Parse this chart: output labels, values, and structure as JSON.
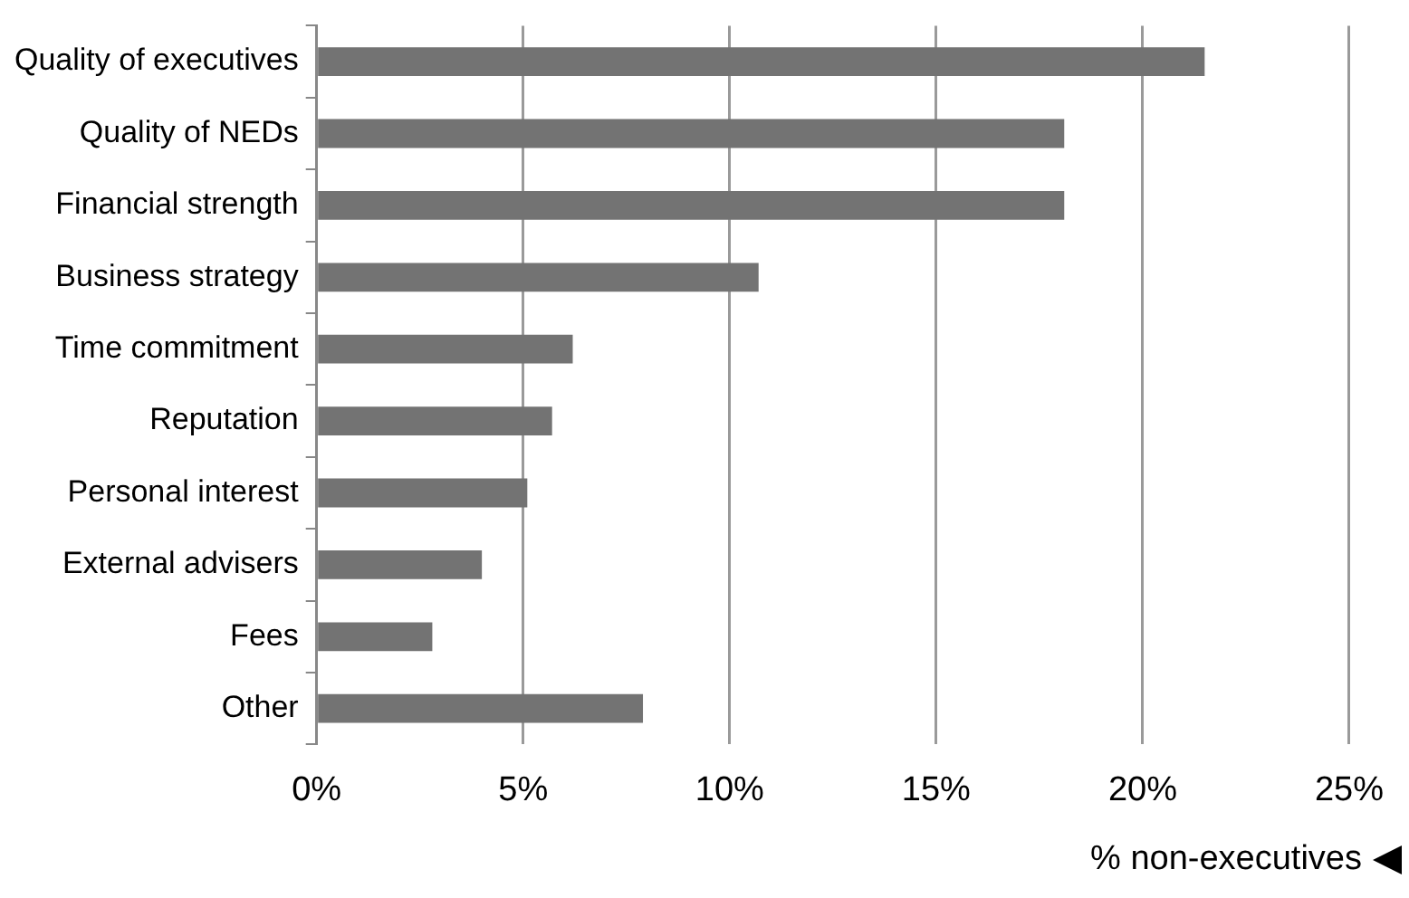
{
  "chart_data": {
    "type": "bar",
    "orientation": "horizontal",
    "xlabel": "% non-executives",
    "categories": [
      "Quality of executives",
      "Quality of NEDs",
      "Financial strength",
      "Business strategy",
      "Time commitment",
      "Reputation",
      "Personal interest",
      "External advisers",
      "Fees",
      "Other"
    ],
    "values": [
      21.5,
      18.1,
      18.1,
      10.7,
      6.2,
      5.7,
      5.1,
      4.0,
      2.8,
      7.9
    ],
    "color": "#737373",
    "xlim": [
      0,
      25
    ],
    "xticks": [
      {
        "value": 0,
        "label": "0%"
      },
      {
        "value": 5,
        "label": "5%"
      },
      {
        "value": 10,
        "label": "10%"
      },
      {
        "value": 15,
        "label": "15%"
      },
      {
        "value": 20,
        "label": "20%"
      },
      {
        "value": 25,
        "label": "25%"
      }
    ],
    "grid": "x",
    "legend": false
  }
}
